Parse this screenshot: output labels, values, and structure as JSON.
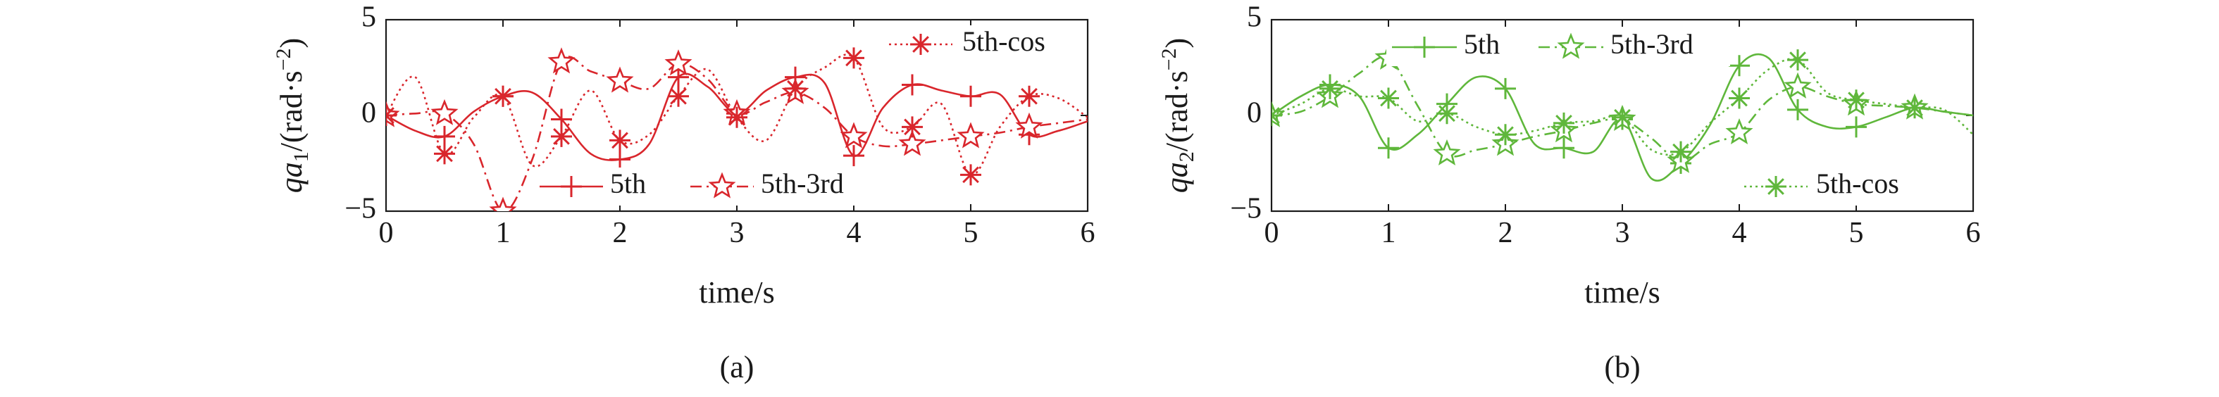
{
  "chart_data": [
    {
      "type": "line",
      "panel_label": "(a)",
      "xlabel": "time/s",
      "ylabel": {
        "pre": "qa",
        "sub": "1",
        "mid": "/(rad·s",
        "sup": "−2",
        "post": ")"
      },
      "xlim": [
        0,
        6
      ],
      "ylim": [
        -5,
        5
      ],
      "xticks": [
        "0",
        "1",
        "2",
        "3",
        "4",
        "5",
        "6"
      ],
      "yticks": [
        "−5",
        "0",
        "5"
      ],
      "ytick_values": [
        -5,
        0,
        5
      ],
      "color": "#d9262c",
      "legend": [
        {
          "name": "5th-cos",
          "placement": "top-right"
        },
        {
          "name": "5th",
          "placement": "bottom-center"
        },
        {
          "name": "5th-3rd",
          "placement": "bottom-center"
        }
      ],
      "series": [
        {
          "name": "5th",
          "marker": "plus",
          "line": "solid",
          "x": [
            0,
            0.25,
            0.5,
            0.75,
            1,
            1.25,
            1.5,
            1.75,
            2,
            2.25,
            2.5,
            2.75,
            3,
            3.25,
            3.5,
            3.75,
            4,
            4.25,
            4.5,
            4.75,
            5,
            5.25,
            5.5,
            5.75,
            6
          ],
          "y": [
            0,
            -0.8,
            -1.1,
            0.2,
            1.0,
            1.2,
            -0.2,
            -2.0,
            -2.3,
            -1.5,
            2.0,
            1.5,
            0.1,
            1.3,
            2.0,
            1.7,
            -2.1,
            0.4,
            1.6,
            1.3,
            1.0,
            1.1,
            -1.0,
            -0.8,
            -0.3
          ],
          "marker_x": [
            0,
            0.5,
            1,
            1.5,
            2,
            2.5,
            3,
            3.5,
            4,
            4.5,
            5,
            5.5
          ]
        },
        {
          "name": "5th-3rd",
          "marker": "star-open",
          "line": "dash-dot",
          "x": [
            0,
            0.25,
            0.5,
            0.75,
            1,
            1.25,
            1.5,
            1.75,
            2,
            2.25,
            2.5,
            2.75,
            3,
            3.25,
            3.5,
            3.75,
            4,
            4.25,
            4.5,
            4.75,
            5,
            5.25,
            5.5,
            5.75,
            6
          ],
          "y": [
            0,
            0.1,
            0.1,
            -1.5,
            -5.0,
            -2.3,
            2.8,
            2.3,
            1.8,
            1.4,
            2.7,
            1.9,
            0.1,
            0.7,
            1.2,
            0.4,
            -1.1,
            -1.6,
            -1.5,
            -1.3,
            -1.1,
            -0.9,
            -0.6,
            -0.4,
            -0.2
          ],
          "marker_x": [
            0,
            0.5,
            1,
            1.5,
            2,
            2.5,
            3,
            3.5,
            4,
            4.5,
            5,
            5.5
          ]
        },
        {
          "name": "5th-cos",
          "marker": "asterisk",
          "line": "dotted",
          "x": [
            0,
            0.25,
            0.5,
            0.75,
            1,
            1.25,
            1.5,
            1.75,
            2,
            2.25,
            2.5,
            2.75,
            3,
            3.25,
            3.5,
            3.75,
            4,
            4.25,
            4.5,
            4.75,
            5,
            5.25,
            5.5,
            5.75,
            6
          ],
          "y": [
            0,
            2.0,
            -2.0,
            -0.1,
            1.0,
            -2.6,
            -1.1,
            1.3,
            -1.3,
            -1.0,
            1.0,
            2.4,
            -0.1,
            -1.3,
            1.4,
            2.5,
            3.0,
            -0.6,
            -0.6,
            0.6,
            -3.1,
            -0.6,
            1.0,
            0.9,
            -0.1
          ],
          "marker_x": [
            0,
            0.5,
            1,
            1.5,
            2,
            2.5,
            3,
            3.5,
            4,
            4.5,
            5,
            5.5
          ]
        }
      ]
    },
    {
      "type": "line",
      "panel_label": "(b)",
      "xlabel": "time/s",
      "ylabel": {
        "pre": "qa",
        "sub": "2",
        "mid": "/(rad·s",
        "sup": "−2",
        "post": ")"
      },
      "xlim": [
        0,
        6
      ],
      "ylim": [
        -5,
        5
      ],
      "xticks": [
        "0",
        "1",
        "2",
        "3",
        "4",
        "5",
        "6"
      ],
      "yticks": [
        "−5",
        "0",
        "5"
      ],
      "ytick_values": [
        -5,
        0,
        5
      ],
      "color": "#5fb73b",
      "legend": [
        {
          "name": "5th",
          "placement": "top-left"
        },
        {
          "name": "5th-3rd",
          "placement": "top-left"
        },
        {
          "name": "5th-cos",
          "placement": "bottom-right"
        }
      ],
      "series": [
        {
          "name": "5th",
          "marker": "plus",
          "line": "solid",
          "x": [
            0,
            0.25,
            0.5,
            0.75,
            1,
            1.25,
            1.5,
            1.75,
            2,
            2.25,
            2.5,
            2.75,
            3,
            3.25,
            3.5,
            3.75,
            4,
            4.25,
            4.5,
            4.75,
            5,
            5.25,
            5.5,
            5.75,
            6
          ],
          "y": [
            0,
            1.0,
            1.6,
            1.0,
            -1.7,
            -1.0,
            0.6,
            2.0,
            1.4,
            -1.5,
            -1.7,
            -1.9,
            -0.2,
            -3.3,
            -2.5,
            -0.5,
            2.6,
            3.0,
            0.3,
            -0.6,
            -0.6,
            -0.1,
            0.4,
            0.2,
            0
          ],
          "marker_x": [
            0,
            0.5,
            1,
            1.5,
            2,
            2.5,
            3,
            3.5,
            4,
            4.5,
            5,
            5.5
          ]
        },
        {
          "name": "5th-3rd",
          "marker": "star-open",
          "line": "dash-dot",
          "x": [
            0,
            0.25,
            0.5,
            0.75,
            1,
            1.25,
            1.5,
            1.75,
            2,
            2.25,
            2.5,
            2.75,
            3,
            3.25,
            3.5,
            3.75,
            4,
            4.25,
            4.5,
            4.75,
            5,
            5.25,
            5.5,
            5.75,
            6
          ],
          "y": [
            0,
            0.2,
            1.0,
            2.2,
            3.0,
            0.5,
            -2.0,
            -1.8,
            -1.5,
            -1.1,
            -0.8,
            -0.4,
            -0.2,
            -1.2,
            -2.4,
            -1.5,
            -0.9,
            0.8,
            1.5,
            1.0,
            0.6,
            0.5,
            0.4,
            0.2,
            0
          ],
          "marker_x": [
            0,
            0.5,
            1,
            1.5,
            2,
            2.5,
            3,
            3.5,
            4,
            4.5,
            5,
            5.5
          ]
        },
        {
          "name": "5th-cos",
          "marker": "asterisk",
          "line": "dotted",
          "x": [
            0,
            0.25,
            0.5,
            0.75,
            1,
            1.25,
            1.5,
            1.75,
            2,
            2.25,
            2.5,
            2.75,
            3,
            3.25,
            3.5,
            3.75,
            4,
            4.25,
            4.5,
            4.75,
            5,
            5.25,
            5.5,
            5.75,
            6
          ],
          "y": [
            0,
            0.6,
            1.4,
            1.0,
            0.9,
            -0.3,
            0.1,
            -0.6,
            -1.0,
            -0.8,
            -0.4,
            -0.3,
            -0.1,
            -1.8,
            -1.9,
            -0.4,
            0.9,
            2.4,
            2.9,
            1.2,
            0.8,
            0.6,
            0.4,
            0.3,
            -1.0
          ],
          "marker_x": [
            0,
            0.5,
            1,
            1.5,
            2,
            2.5,
            3,
            3.5,
            4,
            4.5,
            5,
            5.5
          ]
        }
      ]
    }
  ]
}
